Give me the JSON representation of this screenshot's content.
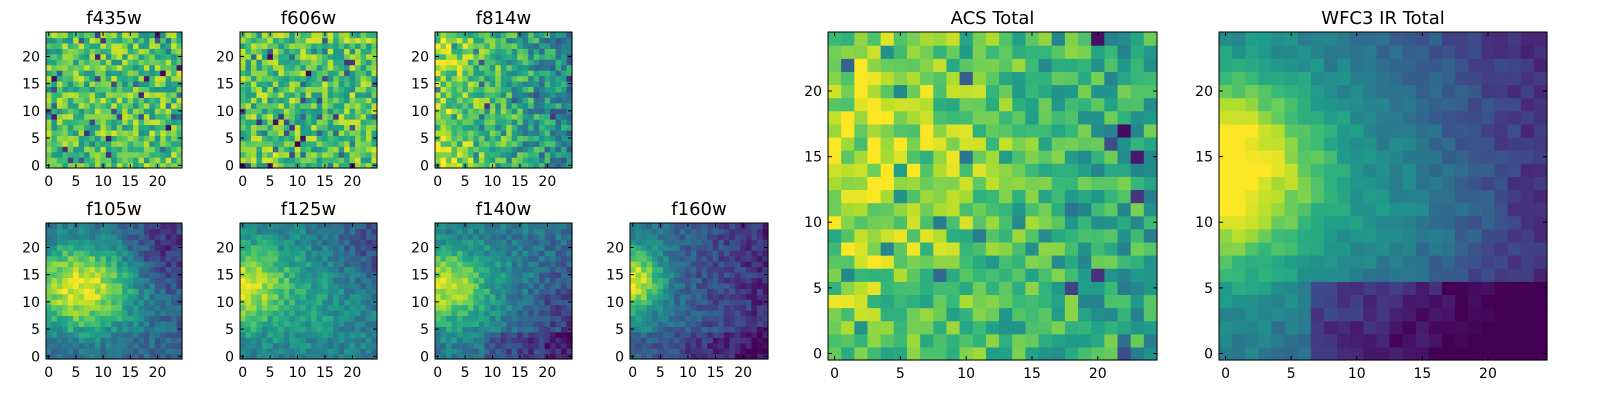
{
  "figure": {
    "panels": [
      "f435w",
      "f606w",
      "f814w",
      "f105w",
      "f125w",
      "f140w",
      "f160w",
      "ACS Total",
      "WFC3 IR Total"
    ]
  },
  "chart_data": [
    {
      "type": "heatmap",
      "title": "f435w",
      "grid_size": 25,
      "xlim": [
        0,
        25
      ],
      "ylim": [
        0,
        25
      ],
      "xticks": [
        "0",
        "5",
        "10",
        "15",
        "20"
      ],
      "yticks": [
        "0",
        "5",
        "10",
        "15",
        "20"
      ],
      "colormap": "viridis",
      "pattern": "uniform noise",
      "values_norm": {
        "mean": 0.72,
        "spread": 0.22
      }
    },
    {
      "type": "heatmap",
      "title": "f606w",
      "grid_size": 25,
      "xlim": [
        0,
        25
      ],
      "ylim": [
        0,
        25
      ],
      "xticks": [
        "0",
        "5",
        "10",
        "15",
        "20"
      ],
      "yticks": [
        "0",
        "5",
        "10",
        "15",
        "20"
      ],
      "colormap": "viridis",
      "pattern": "uniform noise",
      "values_norm": {
        "mean": 0.72,
        "spread": 0.22
      }
    },
    {
      "type": "heatmap",
      "title": "f814w",
      "grid_size": 25,
      "xlim": [
        0,
        25
      ],
      "ylim": [
        0,
        25
      ],
      "xticks": [
        "0",
        "5",
        "10",
        "15",
        "20"
      ],
      "yticks": [
        "0",
        "5",
        "10",
        "15",
        "20"
      ],
      "colormap": "viridis",
      "pattern": "bright left, darker right",
      "values_norm": {
        "left": 0.85,
        "right": 0.45,
        "spread": 0.22
      }
    },
    {
      "type": "heatmap",
      "title": "f105w",
      "grid_size": 25,
      "xlim": [
        0,
        25
      ],
      "ylim": [
        0,
        25
      ],
      "xticks": [
        "0",
        "5",
        "10",
        "15",
        "20"
      ],
      "yticks": [
        "0",
        "5",
        "10",
        "15",
        "20"
      ],
      "colormap": "viridis",
      "pattern": "bright blob left-center, dark upper-right",
      "values_norm": {
        "peak": 0.9,
        "floor": 0.25,
        "spread": 0.12
      }
    },
    {
      "type": "heatmap",
      "title": "f125w",
      "grid_size": 25,
      "xlim": [
        0,
        25
      ],
      "ylim": [
        0,
        25
      ],
      "xticks": [
        "0",
        "5",
        "10",
        "15",
        "20"
      ],
      "yticks": [
        "0",
        "5",
        "10",
        "15",
        "20"
      ],
      "colormap": "viridis",
      "pattern": "bright left edge, dark right edge",
      "values_norm": {
        "peak": 0.92,
        "floor": 0.3,
        "spread": 0.12
      }
    },
    {
      "type": "heatmap",
      "title": "f140w",
      "grid_size": 25,
      "xlim": [
        0,
        25
      ],
      "ylim": [
        0,
        25
      ],
      "xticks": [
        "0",
        "5",
        "10",
        "15",
        "20"
      ],
      "yticks": [
        "0",
        "5",
        "10",
        "15",
        "20"
      ],
      "colormap": "viridis",
      "pattern": "bright left, dark right and bottom",
      "values_norm": {
        "peak": 0.92,
        "floor": 0.2,
        "spread": 0.12
      }
    },
    {
      "type": "heatmap",
      "title": "f160w",
      "grid_size": 25,
      "xlim": [
        0,
        25
      ],
      "ylim": [
        0,
        25
      ],
      "xticks": [
        "0",
        "5",
        "10",
        "15",
        "20"
      ],
      "yticks": [
        "0",
        "5",
        "10",
        "15",
        "20"
      ],
      "colormap": "viridis",
      "pattern": "bright left edge, dark right half",
      "values_norm": {
        "peak": 0.95,
        "floor": 0.15,
        "spread": 0.12
      }
    },
    {
      "type": "heatmap",
      "title": "ACS Total",
      "grid_size": 25,
      "xlim": [
        0,
        25
      ],
      "ylim": [
        0,
        25
      ],
      "xticks": [
        "0",
        "5",
        "10",
        "15",
        "20"
      ],
      "yticks": [
        "0",
        "5",
        "10",
        "15",
        "20"
      ],
      "colormap": "viridis",
      "pattern": "noisy, brighter left-center",
      "values_norm": {
        "peak": 0.95,
        "floor": 0.55,
        "spread": 0.2
      }
    },
    {
      "type": "heatmap",
      "title": "WFC3 IR Total",
      "grid_size": 25,
      "xlim": [
        0,
        25
      ],
      "ylim": [
        0,
        25
      ],
      "xticks": [
        "0",
        "5",
        "10",
        "15",
        "20"
      ],
      "yticks": [
        "0",
        "5",
        "10",
        "15",
        "20"
      ],
      "colormap": "viridis",
      "pattern": "smooth bright left edge, dark right and bottom",
      "values_norm": {
        "peak": 0.97,
        "floor": 0.1,
        "spread": 0.08
      }
    }
  ]
}
